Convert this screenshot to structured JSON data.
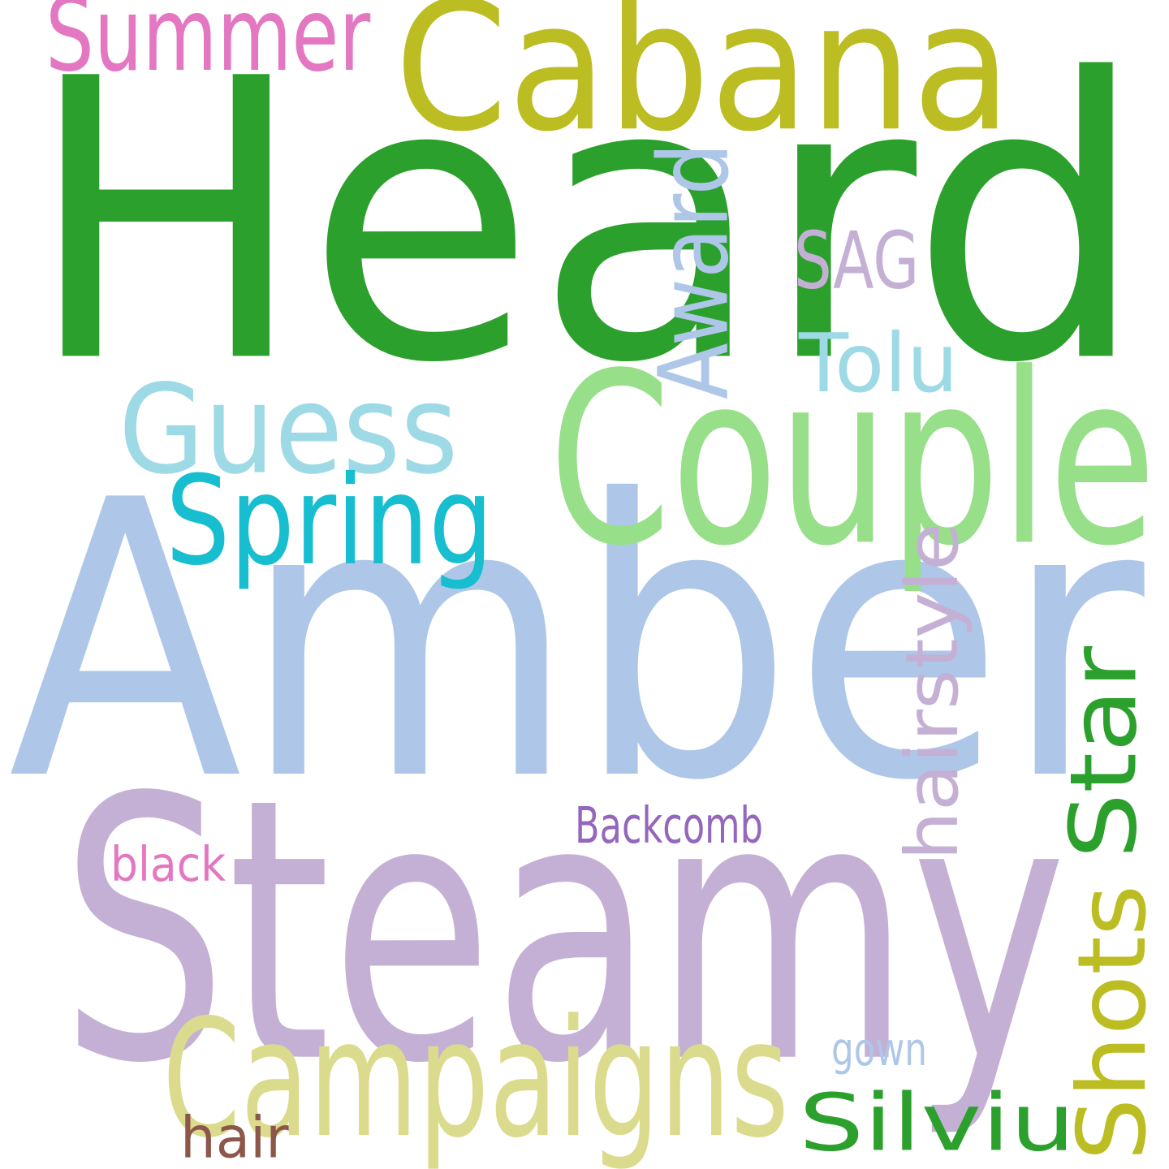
{
  "words": [
    {
      "text": "Heard",
      "color": "#2ca02c",
      "orientation": "horizontal"
    },
    {
      "text": "Amber",
      "color": "#aec7e8",
      "orientation": "horizontal"
    },
    {
      "text": "Steamy",
      "color": "#c5b0d5",
      "orientation": "horizontal"
    },
    {
      "text": "Cabana",
      "color": "#bcbd22",
      "orientation": "horizontal"
    },
    {
      "text": "Couple",
      "color": "#98df8a",
      "orientation": "horizontal"
    },
    {
      "text": "Campaigns",
      "color": "#dbdb8d",
      "orientation": "horizontal"
    },
    {
      "text": "Guess",
      "color": "#9edae5",
      "orientation": "horizontal"
    },
    {
      "text": "Spring",
      "color": "#17becf",
      "orientation": "horizontal"
    },
    {
      "text": "Summer",
      "color": "#e377c2",
      "orientation": "horizontal"
    },
    {
      "text": "Award",
      "color": "#aec7e8",
      "orientation": "vertical"
    },
    {
      "text": "SAG",
      "color": "#c5b0d5",
      "orientation": "horizontal"
    },
    {
      "text": "Tolu",
      "color": "#9edae5",
      "orientation": "horizontal"
    },
    {
      "text": "hairstyle",
      "color": "#c5b0d5",
      "orientation": "vertical"
    },
    {
      "text": "Star",
      "color": "#2ca02c",
      "orientation": "vertical"
    },
    {
      "text": "Shots",
      "color": "#bcbd22",
      "orientation": "vertical"
    },
    {
      "text": "Silviu",
      "color": "#2ca02c",
      "orientation": "horizontal"
    },
    {
      "text": "Backcomb",
      "color": "#9467bd",
      "orientation": "horizontal"
    },
    {
      "text": "black",
      "color": "#e377c2",
      "orientation": "horizontal"
    },
    {
      "text": "gown",
      "color": "#aec7e8",
      "orientation": "horizontal"
    },
    {
      "text": "hair",
      "color": "#8c564b",
      "orientation": "horizontal"
    }
  ]
}
